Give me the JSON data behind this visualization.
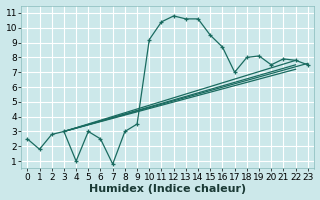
{
  "xlabel": "Humidex (Indice chaleur)",
  "bg_color": "#cce8ea",
  "grid_color": "#ffffff",
  "line_color": "#1a6b60",
  "xlim": [
    -0.5,
    23.5
  ],
  "ylim": [
    0.5,
    11.5
  ],
  "xticks": [
    0,
    1,
    2,
    3,
    4,
    5,
    6,
    7,
    8,
    9,
    10,
    11,
    12,
    13,
    14,
    15,
    16,
    17,
    18,
    19,
    20,
    21,
    22,
    23
  ],
  "yticks": [
    1,
    2,
    3,
    4,
    5,
    6,
    7,
    8,
    9,
    10,
    11
  ],
  "main_x": [
    0,
    1,
    2,
    3,
    4,
    5,
    6,
    7,
    8,
    9,
    10,
    11,
    12,
    13,
    14,
    15,
    16,
    17,
    18,
    19,
    20,
    21,
    22,
    23
  ],
  "main_y": [
    2.5,
    1.8,
    2.8,
    3.0,
    1.0,
    3.0,
    2.5,
    0.8,
    3.0,
    3.5,
    9.2,
    10.4,
    10.8,
    10.6,
    10.6,
    9.5,
    8.7,
    7.0,
    8.0,
    8.1,
    7.5,
    7.9,
    7.8,
    7.5
  ],
  "straight_lines": [
    {
      "x": [
        3,
        22
      ],
      "y": [
        3.0,
        7.8
      ]
    },
    {
      "x": [
        3,
        22
      ],
      "y": [
        3.0,
        7.5
      ]
    },
    {
      "x": [
        3,
        22
      ],
      "y": [
        3.0,
        7.2
      ]
    },
    {
      "x": [
        3,
        23
      ],
      "y": [
        3.0,
        7.6
      ]
    }
  ],
  "xlabel_fontsize": 8,
  "tick_fontsize": 6.5
}
